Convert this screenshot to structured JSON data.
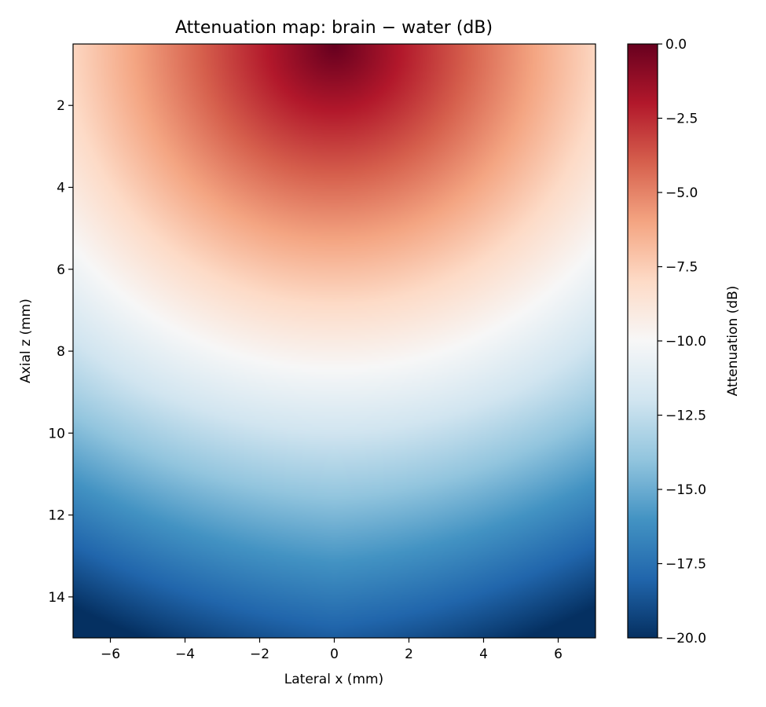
{
  "chart_data": {
    "type": "heatmap",
    "title": "Attenuation map: brain − water (dB)",
    "xlabel": "Lateral x (mm)",
    "ylabel": "Axial z (mm)",
    "xlim": [
      -7,
      7
    ],
    "ylim": [
      15,
      0.5
    ],
    "x_ticks": [
      -6,
      -4,
      -2,
      0,
      2,
      4,
      6
    ],
    "x_tick_labels": [
      "−6",
      "−4",
      "−2",
      "0",
      "2",
      "4",
      "6"
    ],
    "y_ticks": [
      2,
      4,
      6,
      8,
      10,
      12,
      14
    ],
    "y_tick_labels": [
      "2",
      "4",
      "6",
      "8",
      "10",
      "12",
      "14"
    ],
    "colormap": "RdBu_r",
    "colorbar": {
      "label": "Attenuation (dB)",
      "range": [
        -20,
        0
      ],
      "ticks": [
        0,
        -2.5,
        -5,
        -7.5,
        -10,
        -12.5,
        -15,
        -17.5,
        -20
      ],
      "tick_labels": [
        "0.0",
        "−2.5",
        "−5.0",
        "−7.5",
        "−10.0",
        "−12.5",
        "−15.0",
        "−17.5",
        "−20.0"
      ]
    },
    "data_samples": {
      "description_values_dB": "attenuation at lateral x and axial z",
      "points": [
        {
          "x": 0,
          "z": 0.5,
          "value": 0
        },
        {
          "x": 0,
          "z": 2,
          "value": -2.5
        },
        {
          "x": 0,
          "z": 4,
          "value": -5
        },
        {
          "x": 0,
          "z": 6,
          "value": -7.5
        },
        {
          "x": 0,
          "z": 8,
          "value": -10
        },
        {
          "x": 0,
          "z": 10,
          "value": -12
        },
        {
          "x": 0,
          "z": 12,
          "value": -15
        },
        {
          "x": 0,
          "z": 14,
          "value": -17
        },
        {
          "x": 7,
          "z": 0.5,
          "value": -9
        },
        {
          "x": 7,
          "z": 15,
          "value": -20
        }
      ]
    }
  }
}
